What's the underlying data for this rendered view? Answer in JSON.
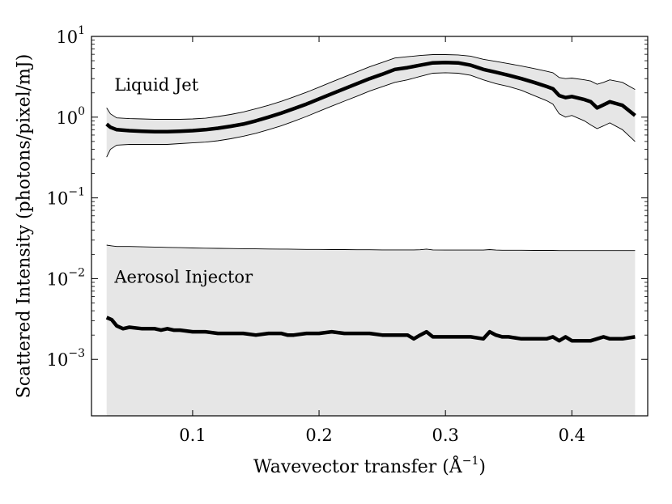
{
  "chart_data": {
    "type": "line",
    "title": "",
    "xlabel": "Wavevector transfer",
    "xlabel_unit_base": "Å",
    "xlabel_unit_exp": "−1",
    "ylabel": "Scattered Intensity (photons/pixel/mJ)",
    "xlim": [
      0.02,
      0.46
    ],
    "ylim": [
      0.0002,
      10
    ],
    "yscale": "log",
    "grid": false,
    "x_ticks": [
      {
        "value": 0.1,
        "label": "0.1"
      },
      {
        "value": 0.2,
        "label": "0.2"
      },
      {
        "value": 0.3,
        "label": "0.3"
      },
      {
        "value": 0.4,
        "label": "0.4"
      }
    ],
    "y_ticks": [
      {
        "value": 0.001,
        "base": "10",
        "exp": "−3"
      },
      {
        "value": 0.01,
        "base": "10",
        "exp": "−2"
      },
      {
        "value": 0.1,
        "base": "10",
        "exp": "−1"
      },
      {
        "value": 1,
        "base": "10",
        "exp": "0"
      },
      {
        "value": 10,
        "base": "10",
        "exp": "1"
      }
    ],
    "series": [
      {
        "name": "Liquid Jet",
        "label_anchor": {
          "x": 0.035,
          "y": 2.5
        },
        "x": [
          0.032,
          0.035,
          0.04,
          0.05,
          0.06,
          0.07,
          0.08,
          0.09,
          0.1,
          0.11,
          0.12,
          0.13,
          0.14,
          0.15,
          0.16,
          0.17,
          0.18,
          0.19,
          0.2,
          0.21,
          0.22,
          0.23,
          0.24,
          0.25,
          0.26,
          0.27,
          0.28,
          0.29,
          0.3,
          0.31,
          0.32,
          0.33,
          0.34,
          0.35,
          0.36,
          0.37,
          0.38,
          0.385,
          0.39,
          0.395,
          0.4,
          0.41,
          0.415,
          0.42,
          0.425,
          0.43,
          0.44,
          0.45
        ],
        "values": [
          0.82,
          0.75,
          0.7,
          0.68,
          0.67,
          0.66,
          0.66,
          0.67,
          0.68,
          0.7,
          0.73,
          0.77,
          0.82,
          0.9,
          1.0,
          1.12,
          1.27,
          1.45,
          1.68,
          1.95,
          2.25,
          2.6,
          3.0,
          3.4,
          3.9,
          4.1,
          4.4,
          4.7,
          4.75,
          4.7,
          4.4,
          3.9,
          3.6,
          3.3,
          3.0,
          2.7,
          2.4,
          2.25,
          1.85,
          1.75,
          1.8,
          1.65,
          1.55,
          1.3,
          1.42,
          1.55,
          1.4,
          1.05
        ],
        "upper": [
          1.3,
          1.1,
          0.98,
          0.96,
          0.95,
          0.94,
          0.94,
          0.94,
          0.95,
          0.97,
          1.02,
          1.08,
          1.16,
          1.27,
          1.4,
          1.57,
          1.78,
          2.03,
          2.35,
          2.73,
          3.15,
          3.64,
          4.2,
          4.76,
          5.4,
          5.6,
          5.8,
          5.95,
          5.95,
          5.9,
          5.7,
          5.2,
          4.9,
          4.6,
          4.3,
          4.0,
          3.7,
          3.55,
          3.1,
          3.0,
          3.05,
          2.9,
          2.8,
          2.55,
          2.7,
          2.9,
          2.7,
          2.2
        ],
        "lower": [
          0.32,
          0.4,
          0.45,
          0.46,
          0.46,
          0.46,
          0.46,
          0.47,
          0.48,
          0.49,
          0.51,
          0.54,
          0.58,
          0.63,
          0.7,
          0.78,
          0.89,
          1.02,
          1.18,
          1.37,
          1.58,
          1.82,
          2.1,
          2.38,
          2.7,
          2.9,
          3.2,
          3.5,
          3.55,
          3.5,
          3.3,
          2.9,
          2.6,
          2.4,
          2.15,
          1.85,
          1.6,
          1.45,
          1.1,
          1.0,
          1.05,
          0.9,
          0.8,
          0.72,
          0.78,
          0.85,
          0.7,
          0.5
        ],
        "color": "#000000",
        "band_color": "#e6e6e6"
      },
      {
        "name": "Aerosol Injector",
        "label_anchor": {
          "x": 0.035,
          "y": 0.0105
        },
        "x": [
          0.032,
          0.036,
          0.04,
          0.045,
          0.05,
          0.06,
          0.07,
          0.075,
          0.08,
          0.085,
          0.09,
          0.1,
          0.11,
          0.12,
          0.13,
          0.14,
          0.15,
          0.16,
          0.17,
          0.175,
          0.18,
          0.19,
          0.2,
          0.21,
          0.22,
          0.23,
          0.24,
          0.25,
          0.26,
          0.27,
          0.275,
          0.28,
          0.285,
          0.29,
          0.3,
          0.31,
          0.32,
          0.33,
          0.335,
          0.34,
          0.345,
          0.35,
          0.36,
          0.37,
          0.38,
          0.385,
          0.39,
          0.395,
          0.4,
          0.41,
          0.415,
          0.42,
          0.425,
          0.43,
          0.44,
          0.45
        ],
        "values": [
          0.0033,
          0.0031,
          0.0026,
          0.0024,
          0.0025,
          0.0024,
          0.0024,
          0.0023,
          0.0024,
          0.0023,
          0.0023,
          0.0022,
          0.0022,
          0.0021,
          0.0021,
          0.0021,
          0.002,
          0.0021,
          0.0021,
          0.002,
          0.002,
          0.0021,
          0.0021,
          0.0022,
          0.0021,
          0.0021,
          0.0021,
          0.002,
          0.002,
          0.002,
          0.0018,
          0.002,
          0.0022,
          0.0019,
          0.0019,
          0.0019,
          0.0019,
          0.0018,
          0.0022,
          0.002,
          0.0019,
          0.0019,
          0.0018,
          0.0018,
          0.0018,
          0.0019,
          0.0017,
          0.0019,
          0.0017,
          0.0017,
          0.0017,
          0.0018,
          0.0019,
          0.0018,
          0.0018,
          0.0019
        ],
        "upper": [
          0.026,
          0.0255,
          0.025,
          0.025,
          0.025,
          0.0248,
          0.0246,
          0.0245,
          0.0244,
          0.0243,
          0.0242,
          0.024,
          0.0238,
          0.0237,
          0.0236,
          0.0235,
          0.0234,
          0.0233,
          0.0232,
          0.0232,
          0.0231,
          0.023,
          0.023,
          0.0229,
          0.0229,
          0.0228,
          0.0228,
          0.0227,
          0.0227,
          0.0227,
          0.0227,
          0.0228,
          0.0232,
          0.0227,
          0.0226,
          0.0226,
          0.0226,
          0.0226,
          0.0229,
          0.0226,
          0.0225,
          0.0225,
          0.0225,
          0.0224,
          0.0224,
          0.0224,
          0.0223,
          0.0223,
          0.0223,
          0.0223,
          0.0223,
          0.0223,
          0.0223,
          0.0223,
          0.0223,
          0.0223
        ],
        "lower": "axis-bottom",
        "color": "#000000",
        "band_color": "#e6e6e6"
      }
    ]
  }
}
